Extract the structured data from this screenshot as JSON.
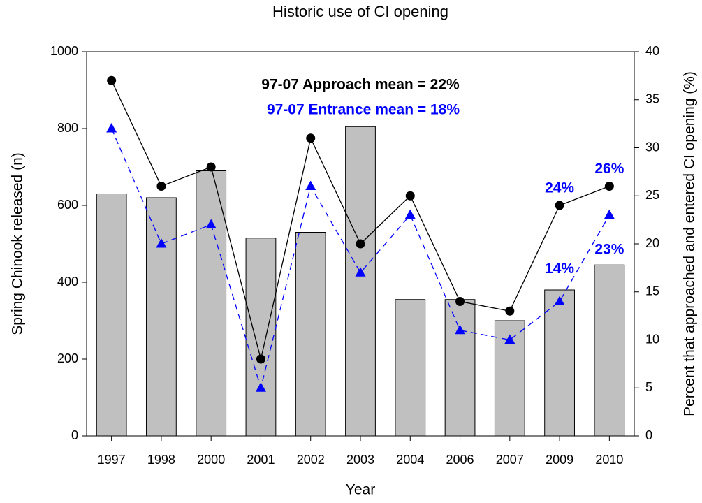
{
  "chart_data": {
    "type": "bar",
    "title": "Historic use of CI opening",
    "xlabel": "Year",
    "ylabel": "Spring Chinook released (n)",
    "y2label": "Percent that approached and entered CI opening (%)",
    "annotations": [
      "97-07 Approach mean = 22%",
      "97-07 Entrance mean = 18%"
    ],
    "categories": [
      "1997",
      "1998",
      "2000",
      "2001",
      "2002",
      "2003",
      "2004",
      "2006",
      "2007",
      "2009",
      "2010"
    ],
    "series": [
      {
        "type": "bar",
        "color": "#c0c0c0",
        "axis": "y",
        "values": [
          630,
          620,
          690,
          515,
          530,
          805,
          355,
          355,
          300,
          380,
          445
        ]
      },
      {
        "type": "line",
        "color": "#000000",
        "axis": "y2",
        "marker": "circle",
        "dash": false,
        "values": [
          37,
          26,
          28,
          8,
          31,
          20,
          25,
          14,
          13,
          24,
          26
        ],
        "value_labels": [
          null,
          null,
          null,
          null,
          null,
          null,
          null,
          null,
          null,
          "24%",
          "26%"
        ]
      },
      {
        "type": "line",
        "color": "#0000ff",
        "axis": "y2",
        "marker": "triangle",
        "dash": true,
        "values": [
          32,
          20,
          22,
          5,
          26,
          17,
          23,
          11,
          10,
          14,
          23
        ],
        "value_labels": [
          null,
          null,
          null,
          null,
          null,
          null,
          null,
          null,
          null,
          "14%",
          "23%"
        ]
      }
    ],
    "ylim": [
      0,
      1000
    ],
    "yticks": [
      0,
      200,
      400,
      600,
      800,
      1000
    ],
    "y2lim": [
      0,
      40
    ],
    "y2ticks": [
      0,
      5,
      10,
      15,
      20,
      25,
      30,
      35,
      40
    ]
  }
}
